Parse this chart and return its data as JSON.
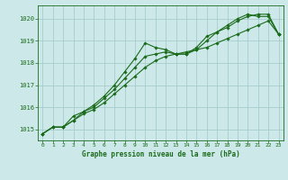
{
  "x": [
    0,
    1,
    2,
    3,
    4,
    5,
    6,
    7,
    8,
    9,
    10,
    11,
    12,
    13,
    14,
    15,
    16,
    17,
    18,
    19,
    20,
    21,
    22,
    23
  ],
  "line1": [
    1014.8,
    1015.1,
    1015.1,
    1015.6,
    1015.8,
    1016.1,
    1016.5,
    1017.0,
    1017.6,
    1018.2,
    1018.9,
    1018.7,
    1018.6,
    1018.4,
    1018.4,
    1018.7,
    1019.2,
    1019.4,
    1019.7,
    1020.0,
    1020.2,
    1020.1,
    1020.1,
    1019.3
  ],
  "line2": [
    1014.8,
    1015.1,
    1015.1,
    1015.4,
    1015.8,
    1016.0,
    1016.4,
    1016.8,
    1017.3,
    1017.8,
    1018.3,
    1018.4,
    1018.5,
    1018.4,
    1018.4,
    1018.6,
    1019.0,
    1019.4,
    1019.6,
    1019.9,
    1020.1,
    1020.2,
    1020.2,
    1019.3
  ],
  "line3": [
    1014.8,
    1015.1,
    1015.1,
    1015.4,
    1015.7,
    1015.9,
    1016.2,
    1016.6,
    1017.0,
    1017.4,
    1017.8,
    1018.1,
    1018.3,
    1018.4,
    1018.5,
    1018.6,
    1018.7,
    1018.9,
    1019.1,
    1019.3,
    1019.5,
    1019.7,
    1019.9,
    1019.3
  ],
  "line_color": "#1a6b1a",
  "background_color": "#cce8e8",
  "grid_color": "#a0c8c8",
  "xlabel": "Graphe pression niveau de la mer (hPa)",
  "ylim_min": 1014.5,
  "ylim_max": 1020.6,
  "xlim_min": -0.5,
  "xlim_max": 23.5,
  "yticks": [
    1015,
    1016,
    1017,
    1018,
    1019,
    1020
  ],
  "xticks": [
    0,
    1,
    2,
    3,
    4,
    5,
    6,
    7,
    8,
    9,
    10,
    11,
    12,
    13,
    14,
    15,
    16,
    17,
    18,
    19,
    20,
    21,
    22,
    23
  ]
}
